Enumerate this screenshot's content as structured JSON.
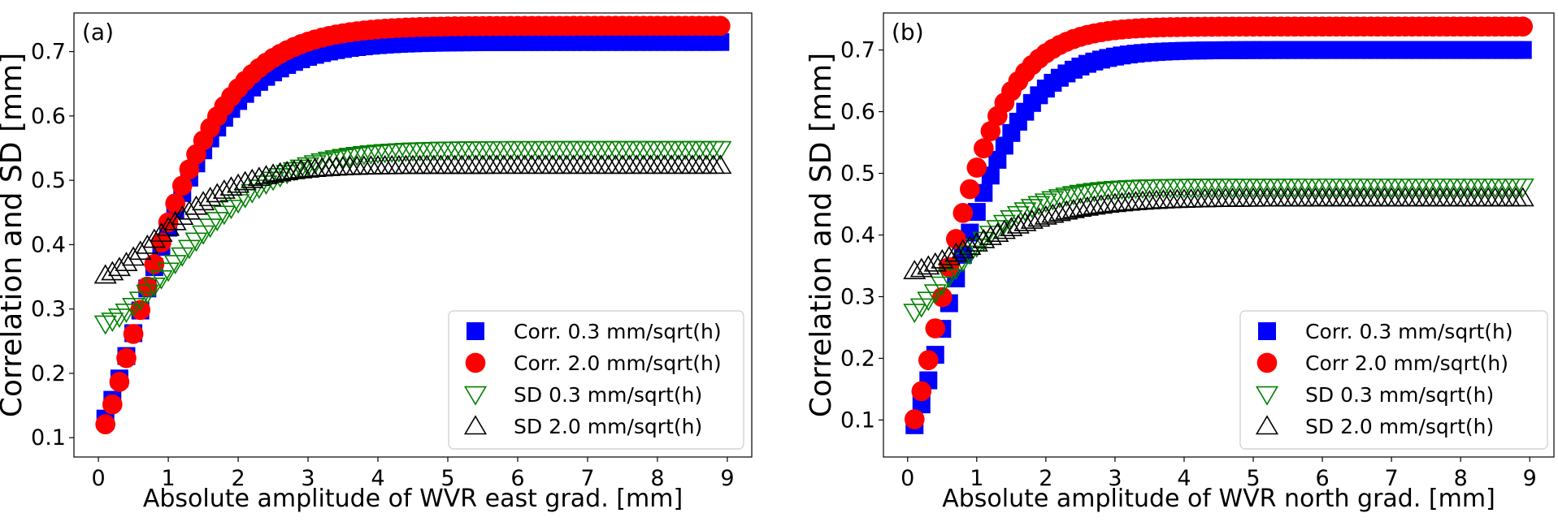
{
  "chart_data": [
    {
      "type": "scatter",
      "panel_label": "(a)",
      "xlabel": "Absolute amplitude of WVR east grad. [mm]",
      "ylabel": "Correlation and SD [mm]",
      "xlim": [
        -0.35,
        9.35
      ],
      "ylim": [
        0.07,
        0.76
      ],
      "xticks": [
        0,
        1,
        2,
        3,
        4,
        5,
        6,
        7,
        8,
        9
      ],
      "xtick_labels": [
        "0",
        "1",
        "2",
        "3",
        "4",
        "5",
        "6",
        "7",
        "8",
        "9"
      ],
      "yticks": [
        0.1,
        0.2,
        0.3,
        0.4,
        0.5,
        0.6,
        0.7
      ],
      "ytick_labels": [
        "0.1",
        "0.2",
        "0.3",
        "0.4",
        "0.5",
        "0.6",
        "0.7"
      ],
      "grid": false,
      "legend_position": "bottom-right",
      "series": [
        {
          "name": "Corr. 0.3 mm/sqrt(h)",
          "marker": "square",
          "color": "#0000ff",
          "model": {
            "x0": 0.1,
            "x1": 8.9,
            "step": 0.1,
            "y0": 0.11,
            "yinf": 0.715,
            "k": 1.25,
            "p": 1.35
          }
        },
        {
          "name": "Corr. 2.0 mm/sqrt(h)",
          "marker": "circle",
          "color": "#ff0000",
          "model": {
            "x0": 0.1,
            "x1": 8.9,
            "step": 0.1,
            "y0": 0.1,
            "yinf": 0.74,
            "k": 1.25,
            "p": 1.35
          }
        },
        {
          "name": "SD 0.3 mm/sqrt(h)",
          "marker": "triangle-down",
          "color": "#008000",
          "model": {
            "x0": 0.1,
            "x1": 8.9,
            "step": 0.1,
            "y0": 0.275,
            "yinf": 0.548,
            "k": 1.8,
            "p": 1.7
          }
        },
        {
          "name": "SD 2.0 mm/sqrt(h)",
          "marker": "triangle-up",
          "color": "#000000",
          "model": {
            "x0": 0.1,
            "x1": 8.9,
            "step": 0.1,
            "y0": 0.35,
            "yinf": 0.523,
            "k": 1.4,
            "p": 1.6
          }
        }
      ]
    },
    {
      "type": "scatter",
      "panel_label": "(b)",
      "xlabel": "Absolute amplitude of WVR north grad. [mm]",
      "ylabel": "Correlation and SD [mm]",
      "xlim": [
        -0.35,
        9.35
      ],
      "ylim": [
        0.04,
        0.76
      ],
      "xticks": [
        0,
        1,
        2,
        3,
        4,
        5,
        6,
        7,
        8,
        9
      ],
      "xtick_labels": [
        "0",
        "1",
        "2",
        "3",
        "4",
        "5",
        "6",
        "7",
        "8",
        "9"
      ],
      "yticks": [
        0.1,
        0.2,
        0.3,
        0.4,
        0.5,
        0.6,
        0.7
      ],
      "ytick_labels": [
        "0.1",
        "0.2",
        "0.3",
        "0.4",
        "0.5",
        "0.6",
        "0.7"
      ],
      "grid": false,
      "legend_position": "bottom-right",
      "series": [
        {
          "name": "Corr. 0.3 mm/sqrt(h)",
          "marker": "square",
          "color": "#0000ff",
          "model": {
            "x0": 0.1,
            "x1": 8.9,
            "step": 0.1,
            "y0": 0.07,
            "yinf": 0.7,
            "k": 1.1,
            "p": 1.4
          }
        },
        {
          "name": "Corr 2.0 mm/sqrt(h)",
          "marker": "circle",
          "color": "#ff0000",
          "model": {
            "x0": 0.1,
            "x1": 8.9,
            "step": 0.1,
            "y0": 0.07,
            "yinf": 0.738,
            "k": 0.95,
            "p": 1.35
          }
        },
        {
          "name": "SD 0.3 mm/sqrt(h)",
          "marker": "triangle-down",
          "color": "#008000",
          "model": {
            "x0": 0.1,
            "x1": 8.9,
            "step": 0.1,
            "y0": 0.27,
            "yinf": 0.478,
            "k": 1.2,
            "p": 1.5
          }
        },
        {
          "name": "SD 2.0 mm/sqrt(h)",
          "marker": "triangle-up",
          "color": "#000000",
          "model": {
            "x0": 0.1,
            "x1": 8.9,
            "step": 0.1,
            "y0": 0.34,
            "yinf": 0.46,
            "k": 1.6,
            "p": 1.5
          }
        }
      ]
    }
  ]
}
